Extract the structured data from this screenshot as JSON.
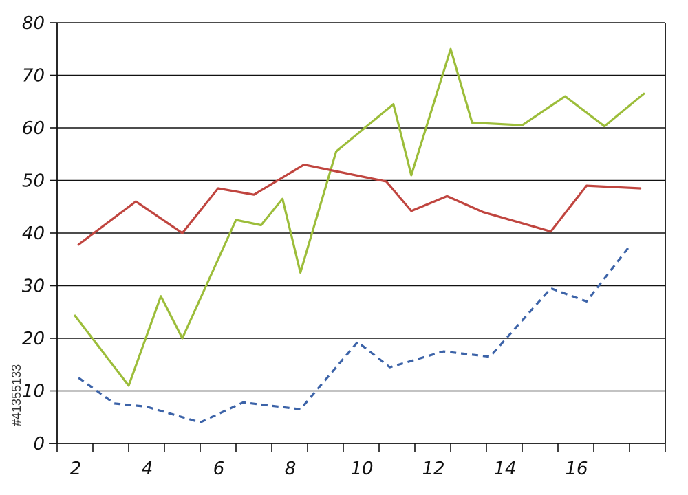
{
  "chart_data": {
    "type": "line",
    "title": "",
    "xlabel": "",
    "ylabel": "",
    "xlim": [
      1,
      18
    ],
    "ylim": [
      0,
      80
    ],
    "x_ticks": [
      2,
      4,
      6,
      8,
      10,
      12,
      14,
      16
    ],
    "y_ticks": [
      0,
      10,
      20,
      30,
      40,
      50,
      60,
      70,
      80
    ],
    "grid": "horizontal",
    "legend": "none",
    "series": [
      {
        "color": "#9cbd3a",
        "style": "solid",
        "points": [
          [
            1.5,
            24.3
          ],
          [
            3,
            11
          ],
          [
            3.9,
            28
          ],
          [
            4.5,
            20
          ],
          [
            6,
            42.5
          ],
          [
            6.7,
            41.5
          ],
          [
            7.3,
            46.5
          ],
          [
            7.8,
            32.5
          ],
          [
            8.8,
            55.5
          ],
          [
            10.4,
            64.5
          ],
          [
            10.9,
            51
          ],
          [
            12,
            75
          ],
          [
            12.6,
            61
          ],
          [
            14,
            60.5
          ],
          [
            15.2,
            66
          ],
          [
            16.3,
            60.3
          ],
          [
            17.4,
            66.5
          ]
        ]
      },
      {
        "color": "#c0453f",
        "style": "solid",
        "points": [
          [
            1.6,
            37.8
          ],
          [
            3.2,
            46
          ],
          [
            4.5,
            40
          ],
          [
            5.5,
            48.5
          ],
          [
            6.5,
            47.3
          ],
          [
            7.9,
            53
          ],
          [
            10.2,
            49.8
          ],
          [
            10.9,
            44.2
          ],
          [
            11.9,
            47
          ],
          [
            12.9,
            44
          ],
          [
            14.8,
            40.3
          ],
          [
            15.8,
            49
          ],
          [
            17.3,
            48.5
          ]
        ]
      },
      {
        "color": "#3c63a8",
        "style": "dashed",
        "points": [
          [
            1.6,
            12.5
          ],
          [
            2.6,
            7.6
          ],
          [
            3.5,
            7
          ],
          [
            5,
            4
          ],
          [
            6.2,
            7.8
          ],
          [
            7.8,
            6.5
          ],
          [
            9.4,
            19.3
          ],
          [
            10.3,
            14.5
          ],
          [
            11.8,
            17.5
          ],
          [
            13.1,
            16.5
          ],
          [
            14.8,
            29.5
          ],
          [
            15.8,
            27
          ],
          [
            17,
            37.5
          ]
        ]
      }
    ]
  },
  "watermark": {
    "id_text": "#41355133"
  }
}
